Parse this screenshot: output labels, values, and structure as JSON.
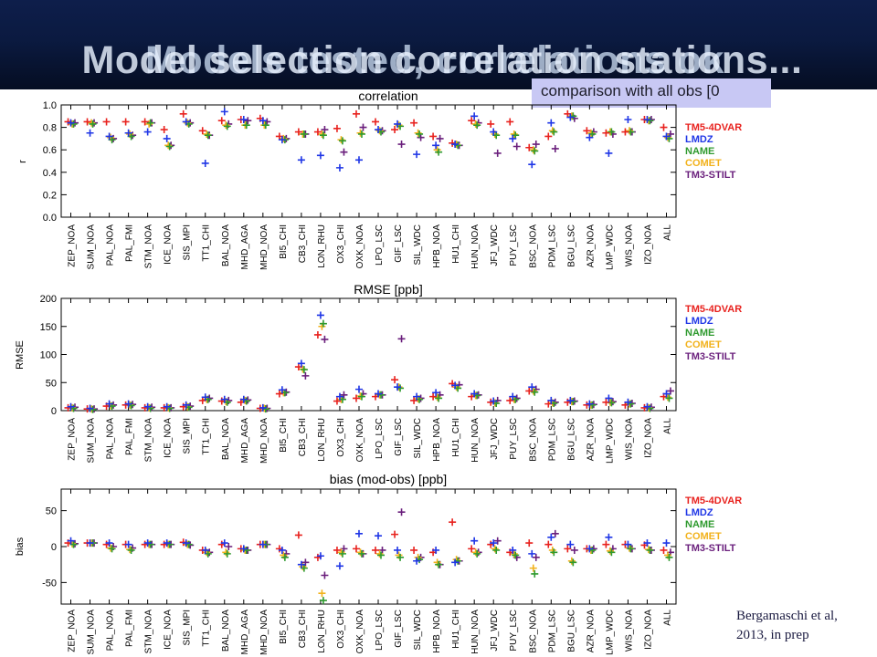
{
  "slide": {
    "title_back": "Models tested, correlations ok",
    "title_front": "Model selection correlation stations...",
    "callout": "comparison with all obs [0",
    "citation_line1": "Bergamaschi et al,",
    "citation_line2": "2013, in prep"
  },
  "colors": {
    "TM5-4DVAR": "#e8221e",
    "LMDZ": "#1f36e6",
    "NAME": "#2f9a2f",
    "COMET": "#f2b21c",
    "TM3-STILT": "#6a1f7c"
  },
  "chart_data": [
    {
      "type": "scatter",
      "title": "correlation",
      "ylabel": "r",
      "ylim": [
        0.0,
        1.0
      ],
      "yticks": [
        "0.0",
        "0.2",
        "0.4",
        "0.6",
        "0.8",
        "1.0"
      ],
      "categories": [
        "ZEP_NOA",
        "SUM_NOA",
        "PAL_NOA",
        "PAL_FMI",
        "STM_NOA",
        "ICE_NOA",
        "SIS_MPI",
        "TT1_CHI",
        "BAL_NOA",
        "MHD_AGA",
        "MHD_NOA",
        "BI5_CHI",
        "CB3_CHI",
        "LON_RHU",
        "OX3_CHI",
        "OXK_NOA",
        "LPO_LSC",
        "GIF_LSC",
        "SIL_WDC",
        "HPB_NOA",
        "HU1_CHI",
        "HUN_NOA",
        "JFJ_WDC",
        "PUY_LSC",
        "BSC_NOA",
        "PDM_LSC",
        "BGU_LSC",
        "AZR_NOA",
        "LMP_WDC",
        "WIS_NOA",
        "IZO_NOA",
        "ALL"
      ],
      "legend": [
        "TM5-4DVAR",
        "LMDZ",
        "NAME",
        "COMET",
        "TM3-STILT"
      ],
      "series": [
        {
          "name": "TM5-4DVAR",
          "values": [
            0.85,
            0.85,
            0.85,
            0.85,
            0.85,
            0.78,
            0.92,
            0.77,
            0.86,
            0.87,
            0.88,
            0.72,
            0.76,
            0.76,
            0.79,
            0.92,
            0.85,
            0.78,
            0.84,
            0.72,
            0.66,
            0.86,
            0.83,
            0.85,
            0.62,
            0.72,
            0.92,
            0.77,
            0.75,
            0.76,
            0.87,
            0.8
          ]
        },
        {
          "name": "LMDZ",
          "values": [
            0.84,
            0.75,
            0.72,
            0.75,
            0.76,
            0.7,
            0.85,
            0.48,
            0.94,
            0.87,
            0.86,
            0.69,
            0.51,
            0.55,
            0.44,
            0.51,
            0.78,
            0.83,
            0.56,
            0.64,
            0.65,
            0.9,
            0.76,
            0.7,
            0.47,
            0.84,
            0.89,
            0.71,
            0.57,
            0.87,
            0.87,
            0.72
          ]
        },
        {
          "name": "NAME",
          "values": [
            0.83,
            0.83,
            0.69,
            0.72,
            0.84,
            0.63,
            0.83,
            0.73,
            0.81,
            0.82,
            0.82,
            0.69,
            0.74,
            0.73,
            0.68,
            0.74,
            0.76,
            0.81,
            0.74,
            0.58,
            0.64,
            0.82,
            0.73,
            0.73,
            0.59,
            0.76,
            0.9,
            0.74,
            0.76,
            0.76,
            0.86,
            0.7
          ]
        },
        {
          "name": "COMET",
          "values": [
            0.83,
            0.84,
            0.71,
            0.74,
            0.83,
            0.64,
            0.84,
            0.74,
            0.82,
            0.82,
            0.82,
            0.7,
            0.74,
            0.74,
            0.69,
            0.75,
            0.77,
            0.82,
            0.75,
            0.6,
            0.65,
            0.83,
            0.74,
            0.74,
            0.6,
            0.77,
            0.9,
            0.75,
            0.76,
            0.77,
            0.86,
            0.71
          ]
        },
        {
          "name": "TM3-STILT",
          "values": [
            0.84,
            0.84,
            0.7,
            0.73,
            0.84,
            0.64,
            0.84,
            0.73,
            0.83,
            0.86,
            0.85,
            0.7,
            0.74,
            0.78,
            0.58,
            0.8,
            0.77,
            0.65,
            0.71,
            0.7,
            0.64,
            0.84,
            0.57,
            0.63,
            0.65,
            0.61,
            0.88,
            0.76,
            0.74,
            0.76,
            0.87,
            0.74
          ]
        }
      ]
    },
    {
      "type": "scatter",
      "title": "RMSE [ppb]",
      "ylabel": "RMSE",
      "ylim": [
        0,
        200
      ],
      "yticks": [
        "0",
        "50",
        "100",
        "150",
        "200"
      ],
      "categories": [
        "ZEP_NOA",
        "SUM_NOA",
        "PAL_NOA",
        "PAL_FMI",
        "STM_NOA",
        "ICE_NOA",
        "SIS_MPI",
        "TT1_CHI",
        "BAL_NOA",
        "MHD_AGA",
        "MHD_NOA",
        "BI5_CHI",
        "CB3_CHI",
        "LON_RHU",
        "OX3_CHI",
        "OXK_NOA",
        "LPO_LSC",
        "GIF_LSC",
        "SIL_WDC",
        "HPB_NOA",
        "HU1_CHI",
        "HUN_NOA",
        "JFJ_WDC",
        "PUY_LSC",
        "BSC_NOA",
        "PDM_LSC",
        "BGU_LSC",
        "AZR_NOA",
        "LMP_WDC",
        "WIS_NOA",
        "IZO_NOA",
        "ALL"
      ],
      "legend": [
        "TM5-4DVAR",
        "LMDZ",
        "NAME",
        "COMET",
        "TM3-STILT"
      ],
      "series": [
        {
          "name": "TM5-4DVAR",
          "values": [
            5,
            3,
            8,
            10,
            5,
            5,
            7,
            18,
            17,
            15,
            4,
            30,
            78,
            135,
            17,
            22,
            25,
            55,
            18,
            25,
            48,
            25,
            15,
            18,
            35,
            12,
            15,
            10,
            15,
            10,
            5,
            25
          ]
        },
        {
          "name": "LMDZ",
          "values": [
            7,
            4,
            12,
            12,
            7,
            7,
            10,
            24,
            20,
            20,
            5,
            37,
            84,
            170,
            25,
            38,
            30,
            42,
            25,
            32,
            45,
            30,
            17,
            25,
            42,
            18,
            18,
            12,
            22,
            15,
            7,
            30
          ]
        },
        {
          "name": "NAME",
          "values": [
            4,
            2,
            8,
            9,
            4,
            4,
            6,
            20,
            15,
            17,
            3,
            32,
            73,
            155,
            20,
            25,
            28,
            40,
            20,
            22,
            40,
            27,
            13,
            20,
            33,
            13,
            16,
            10,
            14,
            12,
            4,
            22
          ]
        },
        {
          "name": "COMET",
          "values": [
            5,
            3,
            9,
            10,
            5,
            5,
            7,
            20,
            16,
            18,
            4,
            32,
            74,
            150,
            20,
            26,
            28,
            42,
            21,
            24,
            42,
            27,
            14,
            20,
            35,
            14,
            16,
            10,
            15,
            12,
            5,
            24
          ]
        },
        {
          "name": "TM3-STILT",
          "values": [
            6,
            3,
            10,
            11,
            6,
            5,
            8,
            22,
            18,
            19,
            4,
            33,
            62,
            127,
            28,
            30,
            28,
            128,
            22,
            28,
            46,
            28,
            18,
            22,
            38,
            15,
            17,
            11,
            16,
            13,
            6,
            35
          ]
        }
      ]
    },
    {
      "type": "scatter",
      "title": "bias (mod-obs) [ppb]",
      "ylabel": "bias",
      "ylim": [
        -80,
        80
      ],
      "yticks": [
        "-50",
        "0",
        "50"
      ],
      "categories": [
        "ZEP_NOA",
        "SUM_NOA",
        "PAL_NOA",
        "PAL_FMI",
        "STM_NOA",
        "ICE_NOA",
        "SIS_MPI",
        "TT1_CHI",
        "BAL_NOA",
        "MHD_AGA",
        "MHD_NOA",
        "BI5_CHI",
        "CB3_CHI",
        "LON_RHU",
        "OX3_CHI",
        "OXK_NOA",
        "LPO_LSC",
        "GIF_LSC",
        "SIL_WDC",
        "HPB_NOA",
        "HU1_CHI",
        "HUN_NOA",
        "JFJ_WDC",
        "PUY_LSC",
        "BSC_NOA",
        "PDM_LSC",
        "BGU_LSC",
        "AZR_NOA",
        "LMP_WDC",
        "WIS_NOA",
        "IZO_NOA",
        "ALL"
      ],
      "legend": [
        "TM5-4DVAR",
        "LMDZ",
        "NAME",
        "COMET",
        "TM3-STILT"
      ],
      "series": [
        {
          "name": "TM5-4DVAR",
          "values": [
            5,
            5,
            3,
            3,
            3,
            3,
            6,
            -5,
            3,
            -3,
            3,
            -3,
            16,
            -15,
            -5,
            -3,
            -5,
            17,
            -5,
            -8,
            34,
            -3,
            3,
            -8,
            5,
            3,
            -3,
            -3,
            3,
            3,
            2,
            -5
          ]
        },
        {
          "name": "LMDZ",
          "values": [
            8,
            5,
            5,
            3,
            5,
            5,
            5,
            -5,
            5,
            -3,
            3,
            -5,
            -25,
            -13,
            -27,
            18,
            15,
            -5,
            -20,
            -5,
            -22,
            8,
            5,
            -5,
            -10,
            13,
            3,
            -3,
            13,
            3,
            5,
            5
          ]
        },
        {
          "name": "NAME",
          "values": [
            3,
            5,
            -3,
            -5,
            3,
            3,
            3,
            -10,
            -10,
            -5,
            3,
            -15,
            -30,
            -75,
            -10,
            -10,
            -12,
            -15,
            -18,
            -25,
            -20,
            -10,
            -5,
            -12,
            -38,
            -8,
            -22,
            -5,
            -8,
            -3,
            -5,
            -15
          ]
        },
        {
          "name": "COMET",
          "values": [
            4,
            5,
            -2,
            -4,
            3,
            3,
            3,
            -8,
            -8,
            -5,
            3,
            -12,
            -28,
            -65,
            -8,
            -8,
            -10,
            -12,
            -15,
            -22,
            -18,
            -8,
            -3,
            -10,
            -30,
            -5,
            -20,
            -5,
            -6,
            -2,
            -4,
            -12
          ]
        },
        {
          "name": "TM3-STILT",
          "values": [
            4,
            5,
            0,
            -2,
            3,
            3,
            2,
            -8,
            0,
            -5,
            3,
            -10,
            -22,
            -40,
            -3,
            -10,
            -5,
            48,
            -15,
            -25,
            -20,
            -8,
            8,
            -15,
            -15,
            18,
            -5,
            -3,
            -3,
            -3,
            -5,
            -8
          ]
        }
      ]
    }
  ]
}
